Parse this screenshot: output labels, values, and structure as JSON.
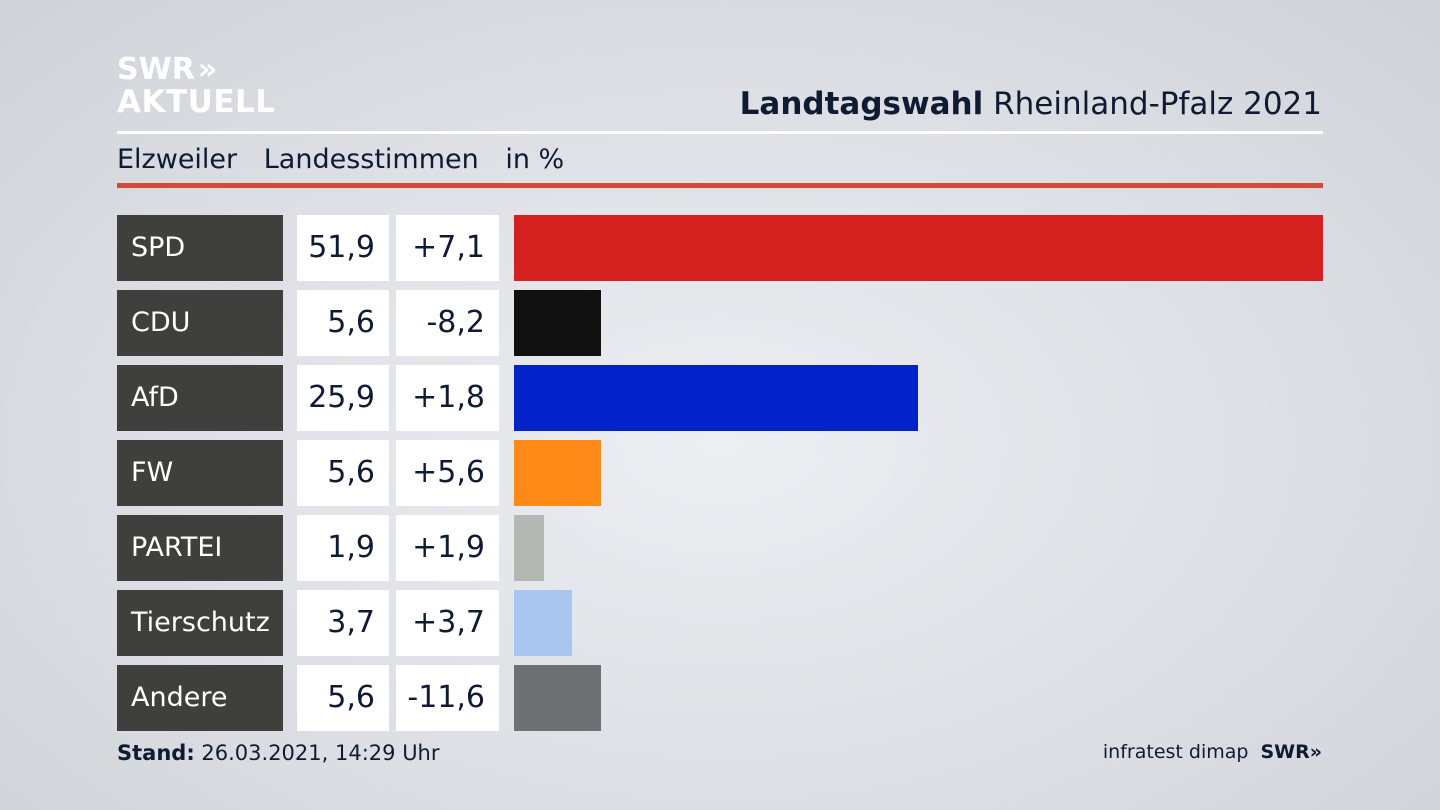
{
  "brand": {
    "line1": "SWR",
    "chevrons": "»",
    "line2": "AKTUELL"
  },
  "header": {
    "title_bold": "Landtagswahl",
    "title_rest": "Rheinland-Pfalz 2021"
  },
  "subtitle": {
    "place": "Elzweiler",
    "vote_type": "Landesstimmen",
    "unit": "in %"
  },
  "footer": {
    "stand_label": "Stand:",
    "stand_value": "26.03.2021, 14:29 Uhr",
    "source": "infratest dimap",
    "source_brand": "SWR»"
  },
  "chart_data": {
    "type": "bar",
    "orientation": "horizontal",
    "categories": [
      "SPD",
      "CDU",
      "AfD",
      "FW",
      "PARTEI",
      "Tierschutz",
      "Andere"
    ],
    "series": [
      {
        "values": [
          51.9,
          5.6,
          25.9,
          5.6,
          1.9,
          3.7,
          5.6
        ]
      }
    ],
    "value_labels": [
      "51,9",
      "5,6",
      "25,9",
      "5,6",
      "1,9",
      "3,7",
      "5,6"
    ],
    "change_labels": [
      "+7,1",
      "-8,2",
      "+1,8",
      "+5,6",
      "+1,9",
      "+3,7",
      "-11,6"
    ],
    "colors": [
      "#d52020",
      "#111111",
      "#0022c8",
      "#fd8a17",
      "#b3b9b2",
      "#a9c6f0",
      "#6f7073"
    ],
    "xlim": [
      0,
      51.9
    ],
    "grid": false
  }
}
